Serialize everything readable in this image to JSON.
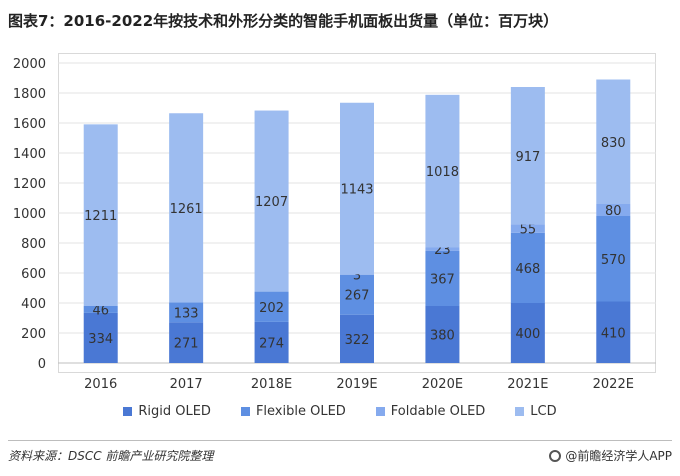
{
  "title": "图表7：2016-2022年按技术和外形分类的智能手机面板出货量（单位：百万块）",
  "source": "资料来源：DSCC  前瞻产业研究院整理",
  "brand": "@前瞻经济学人APP",
  "colors": {
    "rigid_oled": "#4a78d4",
    "flexible_oled": "#5e8fe2",
    "foldable_oled": "#85aaee",
    "lcd": "#9dbcf0"
  },
  "chart_data": {
    "type": "bar",
    "stacked": true,
    "title": "图表7：2016-2022年按技术和外形分类的智能手机面板出货量（单位：百万块）",
    "categories": [
      "2016",
      "2017",
      "2018E",
      "2019E",
      "2020E",
      "2021E",
      "2022E"
    ],
    "series": [
      {
        "name": "Rigid OLED",
        "values": [
          334,
          271,
          274,
          322,
          380,
          400,
          410
        ]
      },
      {
        "name": "Flexible OLED",
        "values": [
          46,
          133,
          202,
          267,
          367,
          468,
          570
        ]
      },
      {
        "name": "Foldable OLED",
        "values": [
          null,
          null,
          null,
          3,
          23,
          55,
          80
        ]
      },
      {
        "name": "LCD",
        "values": [
          1211,
          1261,
          1207,
          1143,
          1018,
          917,
          830
        ]
      }
    ],
    "ylim": [
      0,
      2000
    ],
    "yticks": [
      0,
      200,
      400,
      600,
      800,
      1000,
      1200,
      1400,
      1600,
      1800,
      2000
    ],
    "grid": true,
    "legend_position": "bottom"
  }
}
